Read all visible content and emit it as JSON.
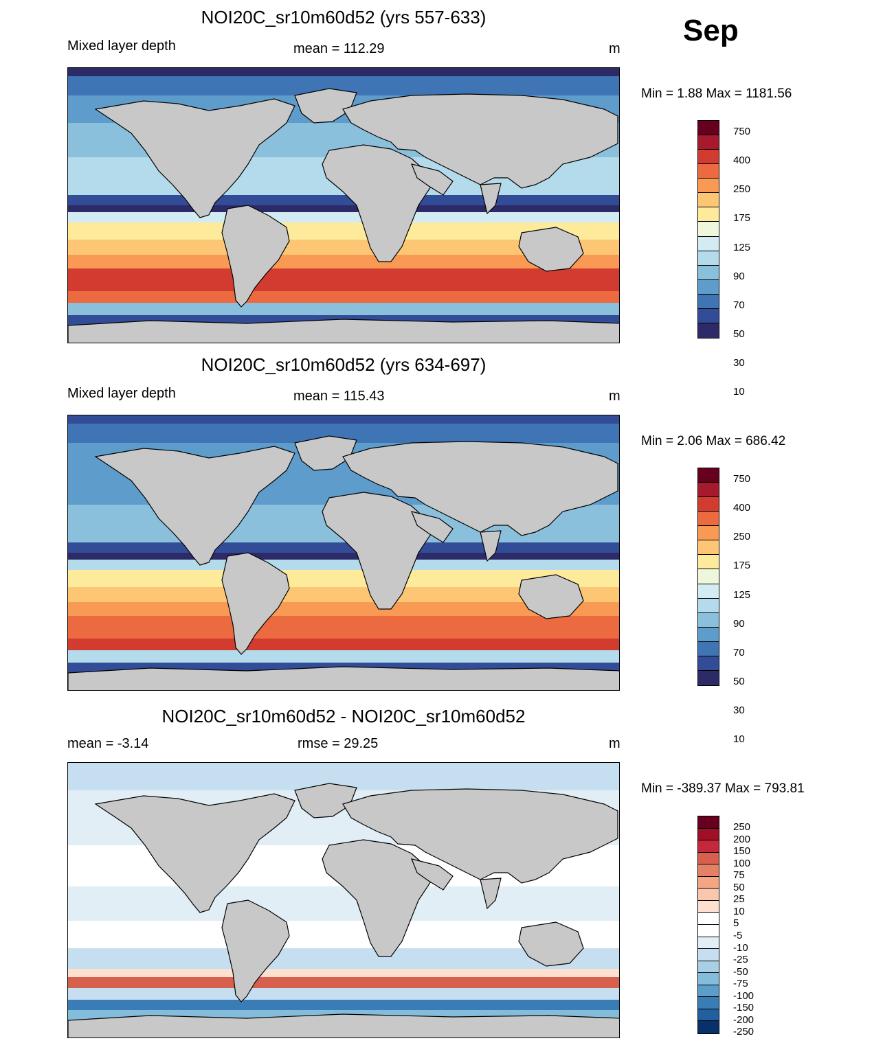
{
  "month": "Sep",
  "panels": [
    {
      "title": "NOI20C_sr10m60d52 (yrs 557-633)",
      "left_label": "Mixed layer depth",
      "center_label": "mean = 112.29",
      "units": "m",
      "minmax": "Min =   1.88 Max = 1181.56",
      "colorbar_labels": [
        "750",
        "400",
        "250",
        "175",
        "125",
        "90",
        "70",
        "50",
        "30",
        "10"
      ]
    },
    {
      "title": "NOI20C_sr10m60d52 (yrs 634-697)",
      "left_label": "Mixed layer depth",
      "center_label": "mean = 115.43",
      "units": "m",
      "minmax": "Min =   2.06 Max = 686.42",
      "colorbar_labels": [
        "750",
        "400",
        "250",
        "175",
        "125",
        "90",
        "70",
        "50",
        "30",
        "10"
      ]
    },
    {
      "title": "NOI20C_sr10m60d52 - NOI20C_sr10m60d52",
      "left_label": "mean =  -3.14",
      "center_label": "rmse =  29.25",
      "units": "m",
      "minmax": "Min = -389.37 Max = 793.81",
      "colorbar_labels": [
        "250",
        "200",
        "150",
        "100",
        "75",
        "50",
        "25",
        "10",
        "5",
        "-5",
        "-10",
        "-25",
        "-50",
        "-75",
        "-100",
        "-150",
        "-200",
        "-250"
      ]
    }
  ],
  "colors": {
    "land": "#c8c8c8",
    "seq_scale": [
      "#67001f",
      "#a7192c",
      "#d23b2f",
      "#ec6a3f",
      "#f89a53",
      "#fdc674",
      "#fdeb9b",
      "#eef7dc",
      "#d3ecf4",
      "#b3dbeb",
      "#8ac0dc",
      "#5e9ccb",
      "#3f75b4",
      "#334c97",
      "#2c2a67"
    ],
    "div_scale": [
      "#67001f",
      "#a10f27",
      "#c4283a",
      "#d6604d",
      "#e48066",
      "#f4a582",
      "#f8c7ad",
      "#fde0d0",
      "#ffffff",
      "#ffffff",
      "#e1eef6",
      "#c6dff0",
      "#a9cfe6",
      "#84bcdb",
      "#5b9ec9",
      "#3a7cb6",
      "#215f9f",
      "#08306b"
    ]
  }
}
